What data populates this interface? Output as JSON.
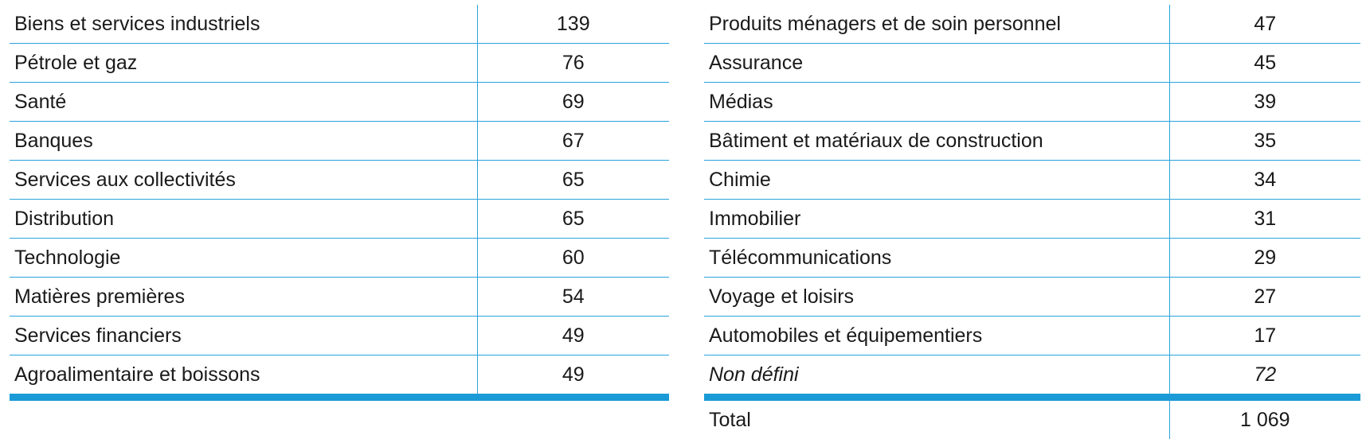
{
  "left_table": {
    "rows": [
      {
        "label": "Biens et services industriels",
        "value": "139"
      },
      {
        "label": "Pétrole et gaz",
        "value": "76"
      },
      {
        "label": "Santé",
        "value": "69"
      },
      {
        "label": "Banques",
        "value": "67"
      },
      {
        "label": "Services aux collectivités",
        "value": "65"
      },
      {
        "label": "Distribution",
        "value": "65"
      },
      {
        "label": "Technologie",
        "value": "60"
      },
      {
        "label": "Matières premières",
        "value": "54"
      },
      {
        "label": "Services financiers",
        "value": "49"
      },
      {
        "label": "Agroalimentaire et boissons",
        "value": "49"
      }
    ]
  },
  "right_table": {
    "rows": [
      {
        "label": "Produits ménagers et de soin personnel",
        "value": "47"
      },
      {
        "label": "Assurance",
        "value": "45"
      },
      {
        "label": "Médias",
        "value": "39"
      },
      {
        "label": "Bâtiment et matériaux de construction",
        "value": "35"
      },
      {
        "label": "Chimie",
        "value": "34"
      },
      {
        "label": "Immobilier",
        "value": "31"
      },
      {
        "label": "Télécommunications",
        "value": "29"
      },
      {
        "label": "Voyage et loisirs",
        "value": "27"
      },
      {
        "label": "Automobiles et équipementiers",
        "value": "17"
      },
      {
        "label": "Non défini",
        "value": "72"
      }
    ],
    "total": {
      "label": "Total",
      "value": "1 069"
    }
  },
  "colors": {
    "rule": "#2aa3dc",
    "accent": "#1a9ad6"
  }
}
